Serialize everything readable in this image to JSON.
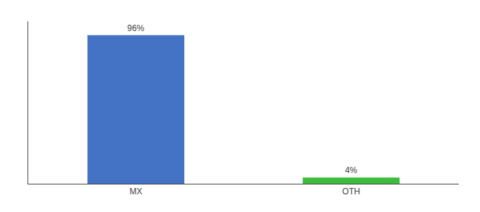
{
  "chart_data": {
    "type": "bar",
    "categories": [
      "MX",
      "OTH"
    ],
    "values": [
      96,
      4
    ],
    "value_labels": [
      "96%",
      "4%"
    ],
    "colors": [
      "#4472c4",
      "#3dbb3d"
    ],
    "ylim": [
      0,
      105
    ],
    "grid": false,
    "tick_labels": "x",
    "data_labels": true
  }
}
